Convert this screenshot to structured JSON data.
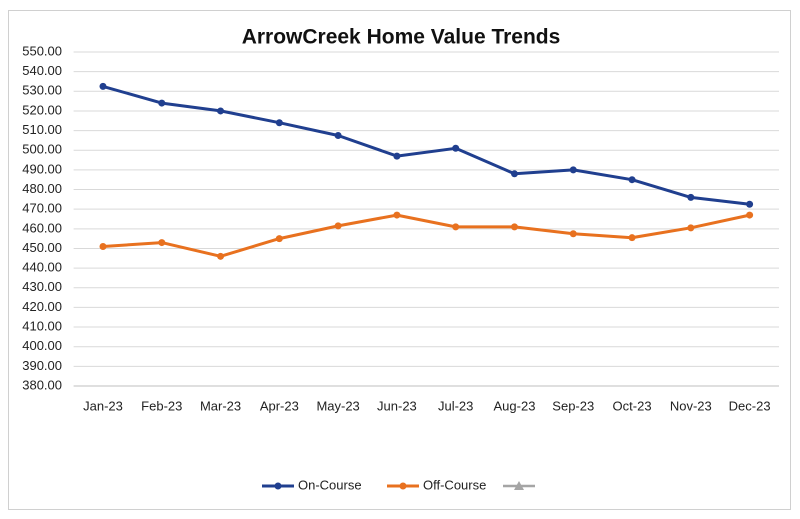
{
  "chart_data": {
    "type": "line",
    "title": "ArrowCreek Home Value Trends",
    "categories": [
      "Jan-23",
      "Feb-23",
      "Mar-23",
      "Apr-23",
      "May-23",
      "Jun-23",
      "Jul-23",
      "Aug-23",
      "Sep-23",
      "Oct-23",
      "Nov-23",
      "Dec-23"
    ],
    "series": [
      {
        "name": "On-Course",
        "color": "#203f8f",
        "values": [
          532.5,
          524,
          520,
          514,
          507.5,
          497,
          501,
          488,
          490,
          485,
          476,
          472.5
        ]
      },
      {
        "name": "Off-Course",
        "color": "#e8711f",
        "values": [
          451,
          453,
          446,
          455,
          461.5,
          467,
          461,
          461,
          457.5,
          455.5,
          460.5,
          467
        ]
      }
    ],
    "ylim": [
      380,
      550
    ],
    "yticks": [
      {
        "value": 380,
        "label": "380.00"
      },
      {
        "value": 390,
        "label": "390.00"
      },
      {
        "value": 400,
        "label": "400.00"
      },
      {
        "value": 410,
        "label": "410.00"
      },
      {
        "value": 420,
        "label": "420.00"
      },
      {
        "value": 430,
        "label": "430.00"
      },
      {
        "value": 440,
        "label": "440.00"
      },
      {
        "value": 450,
        "label": "450.00"
      },
      {
        "value": 460,
        "label": "460.00"
      },
      {
        "value": 470,
        "label": "470.00"
      },
      {
        "value": 480,
        "label": "480.00"
      },
      {
        "value": 490,
        "label": "490.00"
      },
      {
        "value": 500,
        "label": "500.00"
      },
      {
        "value": 510,
        "label": "510.00"
      },
      {
        "value": 520,
        "label": "520.00"
      },
      {
        "value": 530,
        "label": "530.00"
      },
      {
        "value": 540,
        "label": "540.00"
      },
      {
        "value": 550,
        "label": "550.00"
      }
    ],
    "grid": true
  }
}
